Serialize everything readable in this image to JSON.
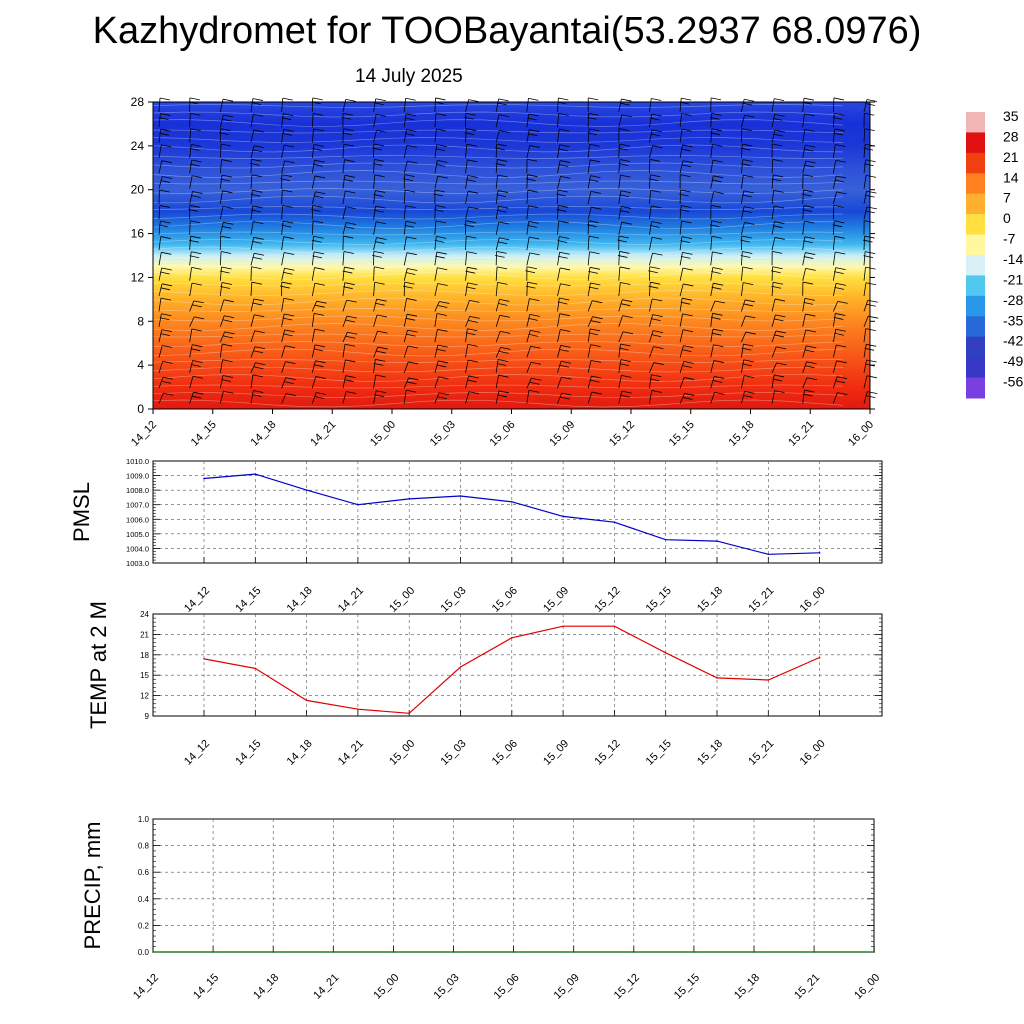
{
  "title": "Kazhydromet for TOOBayantai(53.2937 68.0976)",
  "subtitle": "14 July 2025",
  "chart_data": [
    {
      "type": "heatmap",
      "name": "vertical-profile",
      "ylim": [
        0,
        28
      ],
      "yticks": [
        "0",
        "4",
        "8",
        "12",
        "16",
        "20",
        "24",
        "28"
      ],
      "xticks": [
        "14_12",
        "14_15",
        "14_18",
        "14_21",
        "15_00",
        "15_03",
        "15_06",
        "15_09",
        "15_12",
        "15_15",
        "15_18",
        "15_21",
        "16_00"
      ],
      "colorbar": {
        "labels": [
          "35",
          "28",
          "21",
          "14",
          "7",
          "0",
          "-7",
          "-14",
          "-21",
          "-28",
          "-35",
          "-42",
          "-49",
          "-56"
        ],
        "colors": [
          "#f2b6b6",
          "#e01010",
          "#f04010",
          "#ff8020",
          "#ffb030",
          "#ffe040",
          "#fff8a0",
          "#d8f0f8",
          "#50c8f0",
          "#2898e8",
          "#2868d8",
          "#3040c0",
          "#3838c8",
          "#7840e0"
        ]
      },
      "profile": [
        {
          "y": 0,
          "color": "#e01a10"
        },
        {
          "y": 2,
          "color": "#f02c10"
        },
        {
          "y": 5,
          "color": "#f85a18"
        },
        {
          "y": 8,
          "color": "#fc8820"
        },
        {
          "y": 10,
          "color": "#ffb028"
        },
        {
          "y": 12,
          "color": "#ffe040"
        },
        {
          "y": 13,
          "color": "#fff8b0"
        },
        {
          "y": 14,
          "color": "#c8eef8"
        },
        {
          "y": 15,
          "color": "#40b8f0"
        },
        {
          "y": 16.5,
          "color": "#2080e0"
        },
        {
          "y": 18,
          "color": "#1848d8"
        },
        {
          "y": 20,
          "color": "#3860d8"
        },
        {
          "y": 22,
          "color": "#2c50d8"
        },
        {
          "y": 24,
          "color": "#1c38d8"
        },
        {
          "y": 26,
          "color": "#1830d8"
        },
        {
          "y": 28,
          "color": "#2848e0"
        }
      ]
    },
    {
      "type": "line",
      "name": "pmsl",
      "ylabel": "PMSL",
      "ylim": [
        1003.0,
        1010.0
      ],
      "yticks": [
        "1003.0",
        "1004.0",
        "1005.0",
        "1006.0",
        "1007.0",
        "1008.0",
        "1009.0",
        "1010.0"
      ],
      "categories": [
        "14_12",
        "14_15",
        "14_18",
        "14_21",
        "15_00",
        "15_03",
        "15_06",
        "15_09",
        "15_12",
        "15_15",
        "15_18",
        "15_21",
        "16_00"
      ],
      "values": [
        1008.8,
        1009.1,
        1008.0,
        1007.0,
        1007.4,
        1007.6,
        1007.2,
        1006.2,
        1005.8,
        1004.6,
        1004.5,
        1003.6,
        1003.7
      ],
      "color": "#0000cc"
    },
    {
      "type": "line",
      "name": "temp",
      "ylabel": "TEMP at 2 M",
      "ylim": [
        9,
        24
      ],
      "yticks": [
        "9",
        "12",
        "15",
        "18",
        "21",
        "24"
      ],
      "categories": [
        "14_12",
        "14_15",
        "14_18",
        "14_21",
        "15_00",
        "15_03",
        "15_06",
        "15_09",
        "15_12",
        "15_15",
        "15_18",
        "15_21",
        "16_00"
      ],
      "values": [
        17.4,
        16.0,
        11.3,
        10.0,
        9.4,
        16.2,
        20.5,
        22.2,
        22.2,
        18.3,
        14.6,
        14.3,
        17.6
      ],
      "color": "#e00000"
    },
    {
      "type": "line",
      "name": "precip",
      "ylabel": "PRECIP, mm",
      "ylim": [
        0.0,
        1.0
      ],
      "yticks": [
        "0.0",
        "0.2",
        "0.4",
        "0.6",
        "0.8",
        "1.0"
      ],
      "categories": [
        "14_12",
        "14_15",
        "14_18",
        "14_21",
        "15_00",
        "15_03",
        "15_06",
        "15_09",
        "15_12",
        "15_15",
        "15_18",
        "15_21",
        "16_00"
      ],
      "values": [
        0,
        0,
        0,
        0,
        0,
        0,
        0,
        0,
        0,
        0,
        0,
        0,
        0
      ],
      "color": "#006000"
    }
  ]
}
